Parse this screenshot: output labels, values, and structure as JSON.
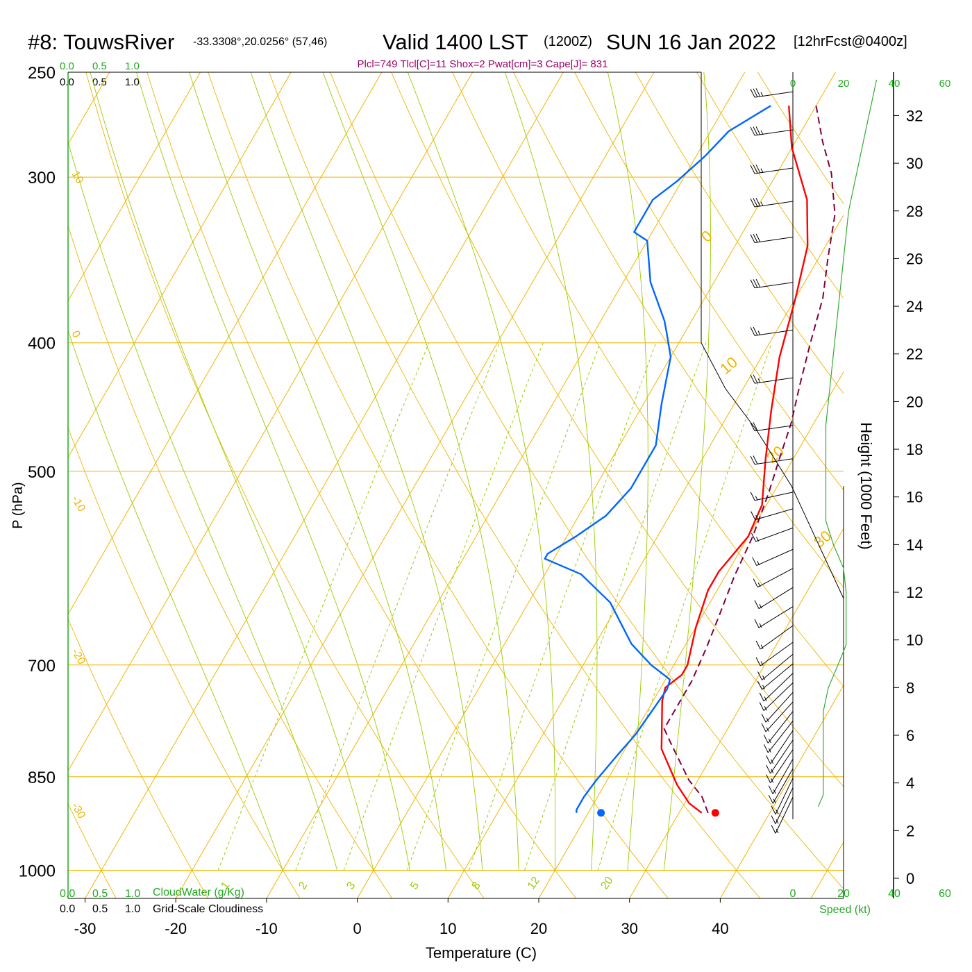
{
  "header": {
    "station": "#8: TouwsRiver",
    "coords": "-33.3308°,20.0256° (57,46)",
    "valid": "Valid 1400 LST",
    "utc": "(1200Z)",
    "date": "SUN 16 Jan 2022",
    "forecast": "[12hrFcst@0400z]",
    "indices": "Plcl=749 Tlcl[C]=11 Shox=2 Pwat[cm]=3 Cape[J]= 831"
  },
  "footer": {
    "cloudwater_label": "CloudWater (g/Kg)",
    "cloudiness_label": "Grid-Scale Cloudiness",
    "scale_ticks": [
      "0.0",
      "0.5",
      "1.0"
    ],
    "speed_label": "Speed (kt)"
  },
  "colors": {
    "isobar": "#f0b400",
    "isotherm": "#f0b400",
    "dry_adiabat": "#f0b400",
    "moist_adiabat": "#99cc00",
    "mixing_ratio": "#99cc00",
    "temperature": "#ff0000",
    "dewpoint": "#0066ff",
    "parcel": "#800040",
    "speed": "#33aa33",
    "indices": "#990066",
    "header_green": "#22aa22"
  },
  "chart_data": {
    "type": "line",
    "title": "#8: TouwsRiver -33.3308°,20.0256° (57,46) Valid 1400 LST (1200Z) SUN 16 Jan 2022 [12hrFcst@0400z]",
    "xlabel": "Temperature (C)",
    "ylabel": "P (hPa)",
    "y2label": "Height (1000 Feet)",
    "y_scale": "log",
    "xlim": [
      -34,
      36
    ],
    "ylim": [
      1050,
      250
    ],
    "x_ticks": [
      -30,
      -20,
      -10,
      0,
      10,
      20,
      30,
      40
    ],
    "y_ticks": [
      250,
      300,
      400,
      500,
      700,
      850,
      1000
    ],
    "height_ticks": [
      0,
      2,
      4,
      6,
      8,
      10,
      12,
      14,
      16,
      18,
      20,
      22,
      24,
      26,
      28,
      30,
      32
    ],
    "speed_ticks": [
      0,
      20,
      40,
      60
    ],
    "mixing_ratio_labels": [
      "1",
      "2",
      "3",
      "5",
      "8",
      "12",
      "20"
    ],
    "mixing_ratio_values": [
      1,
      2,
      3,
      5,
      8,
      12,
      20
    ],
    "isotherm_labels": [
      "10",
      "0",
      "-10",
      "-20",
      "-30"
    ],
    "dry_adiabat_labels": [
      "0",
      "10",
      "20",
      "30"
    ],
    "series": [
      {
        "name": "Temperature",
        "points": [
          [
            32.5,
            905
          ],
          [
            30.5,
            890
          ],
          [
            28,
            862
          ],
          [
            24,
            810
          ],
          [
            21,
            745
          ],
          [
            20.5,
            728
          ],
          [
            21.5,
            712
          ],
          [
            21.5,
            700
          ],
          [
            20,
            655
          ],
          [
            19,
            615
          ],
          [
            19,
            595
          ],
          [
            20,
            560
          ],
          [
            19.5,
            530
          ],
          [
            17,
            490
          ],
          [
            14.5,
            450
          ],
          [
            12,
            410
          ],
          [
            10,
            370
          ],
          [
            8,
            338
          ],
          [
            5,
            312
          ],
          [
            0,
            285
          ],
          [
            -3,
            265
          ]
        ]
      },
      {
        "name": "Dewpoint",
        "points": [
          [
            18.7,
            905
          ],
          [
            18.5,
            900
          ],
          [
            18.5,
            880
          ],
          [
            18.8,
            855
          ],
          [
            19.5,
            820
          ],
          [
            20.2,
            790
          ],
          [
            20.5,
            760
          ],
          [
            20.8,
            730
          ],
          [
            20.5,
            718
          ],
          [
            17.5,
            700
          ],
          [
            14,
            675
          ],
          [
            9,
            628
          ],
          [
            4,
            598
          ],
          [
            -1,
            582
          ],
          [
            -1,
            577
          ],
          [
            1,
            560
          ],
          [
            3,
            540
          ],
          [
            4,
            515
          ],
          [
            4,
            478
          ],
          [
            2,
            445
          ],
          [
            0,
            410
          ],
          [
            -2,
            393
          ],
          [
            -3,
            385
          ],
          [
            -7,
            360
          ],
          [
            -10,
            335
          ],
          [
            -12,
            330
          ],
          [
            -12,
            312
          ],
          [
            -10.5,
            302
          ],
          [
            -9,
            289
          ],
          [
            -8,
            277
          ],
          [
            -5,
            265
          ]
        ]
      },
      {
        "name": "Parcel",
        "points": [
          [
            33.2,
            905
          ],
          [
            31.5,
            880
          ],
          [
            29,
            855
          ],
          [
            24.5,
            800
          ],
          [
            23,
            782
          ],
          [
            23,
            745
          ],
          [
            23,
            720
          ],
          [
            22.5,
            680
          ],
          [
            21.8,
            640
          ],
          [
            21,
            600
          ],
          [
            20.5,
            560
          ],
          [
            19.5,
            520
          ],
          [
            18.5,
            490
          ],
          [
            17.5,
            460
          ],
          [
            16,
            430
          ],
          [
            14.5,
            400
          ],
          [
            13,
            370
          ],
          [
            11,
            345
          ],
          [
            9,
            320
          ],
          [
            6,
            298
          ],
          [
            3,
            282
          ],
          [
            0,
            265
          ]
        ]
      }
    ],
    "surface_points": [
      {
        "name": "Surface Dewpoint",
        "t": 21.4,
        "p": 905
      },
      {
        "name": "Surface Temperature",
        "t": 34,
        "p": 905
      }
    ],
    "wind_barbs": [
      {
        "h": 33,
        "speed": 35,
        "dir": 270
      },
      {
        "h": 31.4,
        "speed": 35,
        "dir": 270
      },
      {
        "h": 29.8,
        "speed": 35,
        "dir": 270
      },
      {
        "h": 28.4,
        "speed": 35,
        "dir": 270
      },
      {
        "h": 26.9,
        "speed": 30,
        "dir": 270
      },
      {
        "h": 25,
        "speed": 30,
        "dir": 270
      },
      {
        "h": 23,
        "speed": 25,
        "dir": 270
      },
      {
        "h": 21,
        "speed": 25,
        "dir": 270
      },
      {
        "h": 19,
        "speed": 20,
        "dir": 270
      },
      {
        "h": 17.6,
        "speed": 20,
        "dir": 270
      },
      {
        "h": 16.2,
        "speed": 15,
        "dir": 265
      },
      {
        "h": 15.5,
        "speed": 15,
        "dir": 260
      },
      {
        "h": 14.7,
        "speed": 15,
        "dir": 255
      },
      {
        "h": 13.8,
        "speed": 15,
        "dir": 250
      },
      {
        "h": 13,
        "speed": 15,
        "dir": 245
      },
      {
        "h": 12.2,
        "speed": 15,
        "dir": 240
      },
      {
        "h": 11.4,
        "speed": 15,
        "dir": 240
      },
      {
        "h": 10.6,
        "speed": 15,
        "dir": 235
      },
      {
        "h": 9.9,
        "speed": 15,
        "dir": 235
      },
      {
        "h": 9.4,
        "speed": 15,
        "dir": 230
      },
      {
        "h": 9,
        "speed": 15,
        "dir": 230
      },
      {
        "h": 8.6,
        "speed": 15,
        "dir": 225
      },
      {
        "h": 8.2,
        "speed": 15,
        "dir": 225
      },
      {
        "h": 7.8,
        "speed": 15,
        "dir": 220
      },
      {
        "h": 7.4,
        "speed": 15,
        "dir": 220
      },
      {
        "h": 7,
        "speed": 15,
        "dir": 215
      },
      {
        "h": 6.6,
        "speed": 15,
        "dir": 215
      },
      {
        "h": 6.2,
        "speed": 15,
        "dir": 210
      },
      {
        "h": 5.8,
        "speed": 15,
        "dir": 210
      },
      {
        "h": 5.4,
        "speed": 15,
        "dir": 210
      },
      {
        "h": 5,
        "speed": 15,
        "dir": 205
      },
      {
        "h": 4.6,
        "speed": 15,
        "dir": 205
      },
      {
        "h": 4.2,
        "speed": 15,
        "dir": 200
      },
      {
        "h": 3.8,
        "speed": 15,
        "dir": 200
      },
      {
        "h": 3.4,
        "speed": 15,
        "dir": 200
      }
    ],
    "speed_profile": [
      [
        10,
        3
      ],
      [
        12,
        3.5
      ],
      [
        12,
        5
      ],
      [
        12,
        6
      ],
      [
        12,
        7
      ],
      [
        14,
        8
      ],
      [
        18,
        9
      ],
      [
        21,
        9.8
      ],
      [
        21,
        10.5
      ],
      [
        21,
        12
      ],
      [
        20,
        13
      ],
      [
        16,
        14
      ],
      [
        13,
        15
      ],
      [
        13,
        16
      ],
      [
        13,
        18
      ],
      [
        13,
        19
      ],
      [
        14,
        20
      ],
      [
        16,
        22
      ],
      [
        18,
        24
      ],
      [
        20,
        26
      ],
      [
        22,
        28
      ],
      [
        26,
        30
      ],
      [
        29,
        31.5
      ],
      [
        31,
        32.5
      ],
      [
        33,
        33.5
      ]
    ],
    "grid": true
  }
}
